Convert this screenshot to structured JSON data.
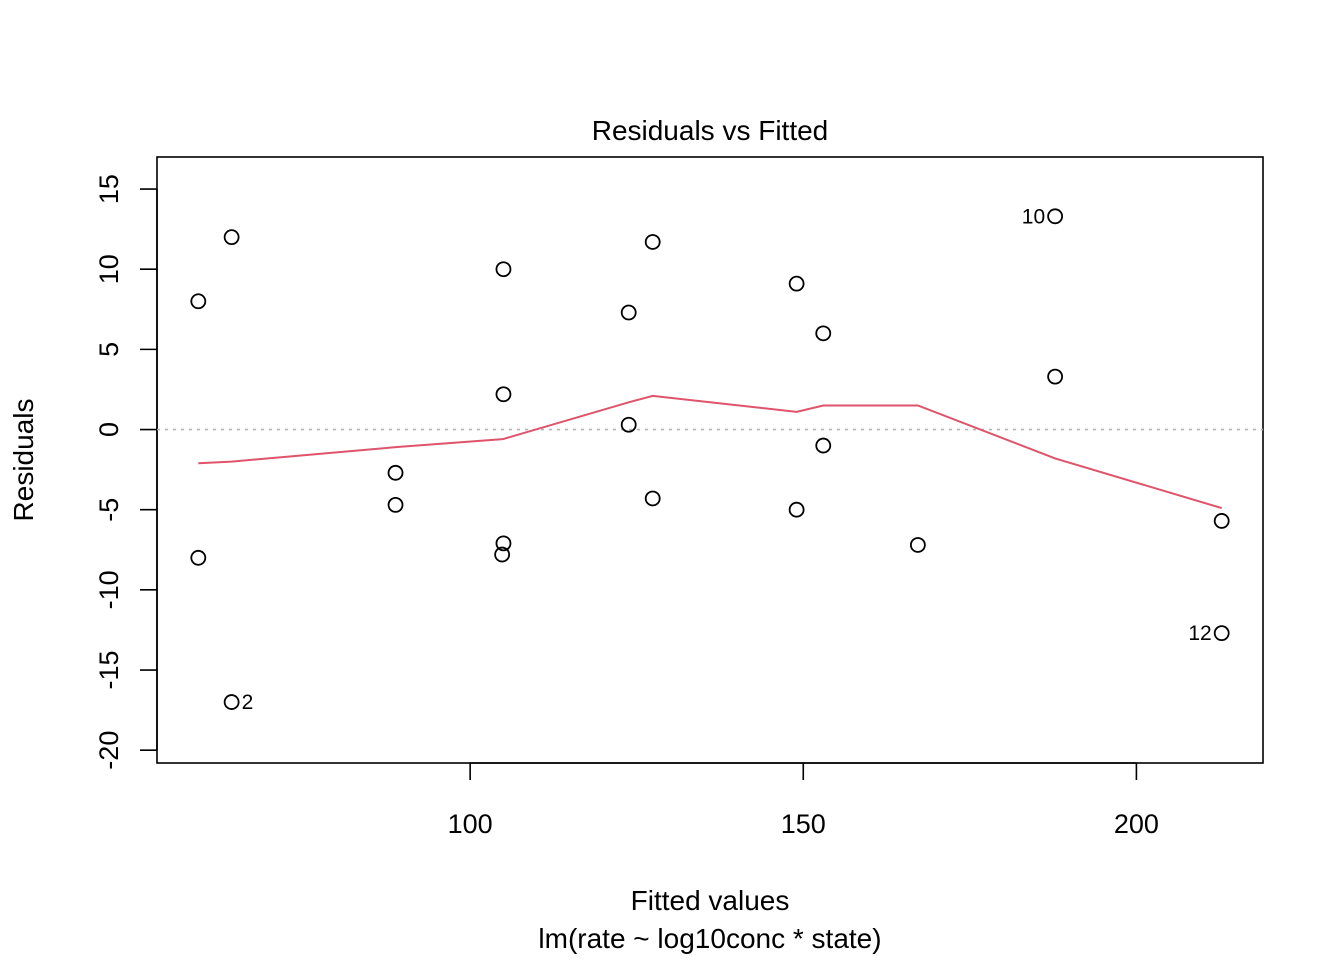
{
  "chart_data": {
    "type": "scatter",
    "title": "Residuals vs Fitted",
    "xlabel": "Fitted values",
    "subtitle": "lm(rate ~ log10conc * state)",
    "ylabel": "Residuals",
    "xlim": [
      53,
      219
    ],
    "ylim": [
      -20.8,
      17
    ],
    "x_ticks": [
      100,
      150,
      200
    ],
    "x_tick_labels": [
      "100",
      "150",
      "200"
    ],
    "y_ticks": [
      -20,
      -15,
      -10,
      -5,
      0,
      5,
      10,
      15
    ],
    "y_tick_labels": [
      "-20",
      "-15",
      "-10",
      "-5",
      "0",
      "5",
      "10",
      "15"
    ],
    "grid": false,
    "reference_line": {
      "y": 0,
      "style": "dotted",
      "color": "#b3b3b3"
    },
    "colors": {
      "smoother": "#df536b",
      "points": "#000000",
      "axes": "#000000"
    },
    "points": [
      {
        "x": 59.2,
        "y": 8.0
      },
      {
        "x": 59.2,
        "y": -8.0
      },
      {
        "x": 64.2,
        "y": 12.0
      },
      {
        "x": 64.2,
        "y": -17.0,
        "label": "2"
      },
      {
        "x": 88.8,
        "y": -2.7
      },
      {
        "x": 88.8,
        "y": -4.7
      },
      {
        "x": 105.0,
        "y": 10.0
      },
      {
        "x": 105.0,
        "y": 2.2
      },
      {
        "x": 105.0,
        "y": -7.1
      },
      {
        "x": 104.8,
        "y": -7.8
      },
      {
        "x": 123.8,
        "y": 7.3
      },
      {
        "x": 123.8,
        "y": 0.3
      },
      {
        "x": 127.4,
        "y": 11.7
      },
      {
        "x": 127.4,
        "y": -4.3
      },
      {
        "x": 149.0,
        "y": 9.1
      },
      {
        "x": 149.0,
        "y": -5.0
      },
      {
        "x": 153.0,
        "y": 6.0
      },
      {
        "x": 153.0,
        "y": -1.0
      },
      {
        "x": 167.2,
        "y": -7.2
      },
      {
        "x": 187.8,
        "y": 13.3,
        "label": "10"
      },
      {
        "x": 187.8,
        "y": 3.3
      },
      {
        "x": 212.8,
        "y": -5.7
      },
      {
        "x": 212.8,
        "y": -12.7,
        "label": "12"
      }
    ],
    "smoother": {
      "x": [
        59.2,
        64.2,
        88.8,
        104.9,
        123.8,
        127.4,
        149.0,
        153.0,
        167.2,
        187.8,
        212.8
      ],
      "y": [
        -2.1,
        -2.0,
        -1.1,
        -0.6,
        1.7,
        2.1,
        1.1,
        1.5,
        1.5,
        -1.8,
        -4.9
      ]
    }
  }
}
